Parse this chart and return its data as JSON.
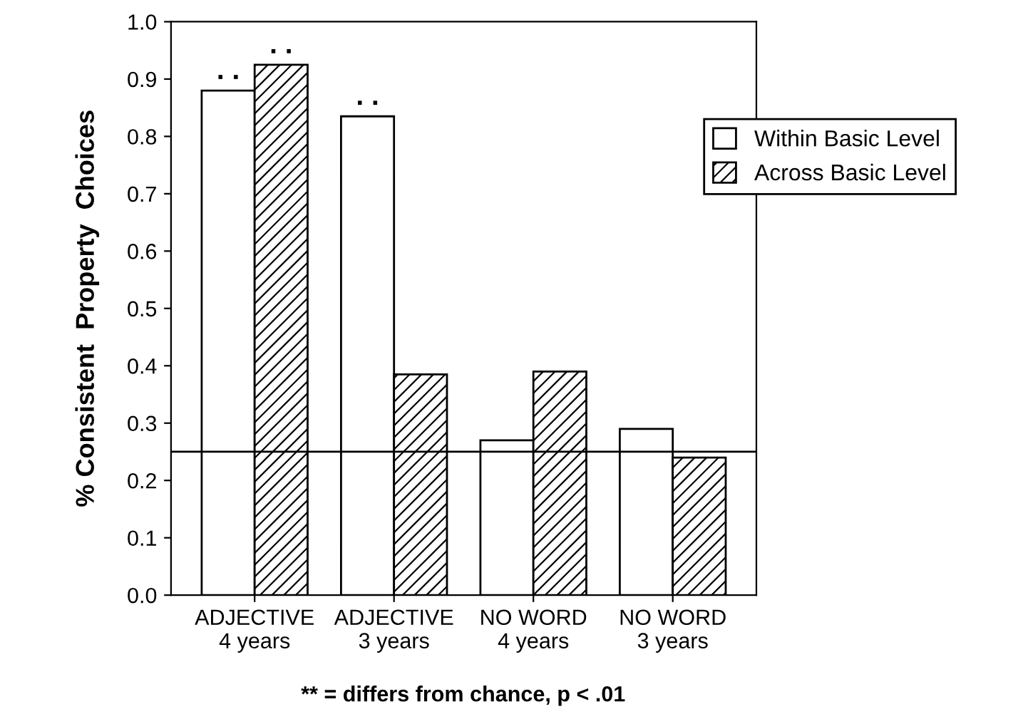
{
  "chart_data": {
    "type": "bar",
    "ylabel": "% Consistent  Property  Choices",
    "categories": [
      "ADJECTIVE\n4 years",
      "ADJECTIVE\n3 years",
      "NO WORD\n4 years",
      "NO WORD\n3 years"
    ],
    "series": [
      {
        "name": "Within Basic Level",
        "color": "#ffffff",
        "values": [
          0.88,
          0.835,
          0.27,
          0.29
        ]
      },
      {
        "name": "Across Basic Level",
        "color": "#000000",
        "values": [
          0.925,
          0.385,
          0.39,
          0.24
        ]
      }
    ],
    "ylim": [
      0,
      1.0
    ],
    "yticks": [
      {
        "value": 0,
        "label": "0.0"
      },
      {
        "value": 0.1,
        "label": "0.1"
      },
      {
        "value": 0.2,
        "label": "0.2"
      },
      {
        "value": 0.3,
        "label": "0.3"
      },
      {
        "value": 0.4,
        "label": "0.4"
      },
      {
        "value": 0.5,
        "label": "0.5"
      },
      {
        "value": 0.6,
        "label": "0.6"
      },
      {
        "value": 0.7,
        "label": "0.7"
      },
      {
        "value": 0.8,
        "label": "0.8"
      },
      {
        "value": 0.9,
        "label": "0.9"
      },
      {
        "value": 1.0,
        "label": "1.0"
      }
    ],
    "ref_lines": [
      {
        "axis": "y",
        "value": 0.25,
        "label": null
      }
    ],
    "annotations": [
      {
        "text": ". .",
        "x": "ADJECTIVE\n4 years",
        "y": 0.88
      },
      {
        "text": ". .",
        "x": "ADJECTIVE\n4 years",
        "y": 0.925
      },
      {
        "text": ". .",
        "x": "ADJECTIVE\n3 years",
        "y": 0.835
      },
      "** = differs from chance, p < .01"
    ],
    "grid": false,
    "legend": "top right"
  }
}
